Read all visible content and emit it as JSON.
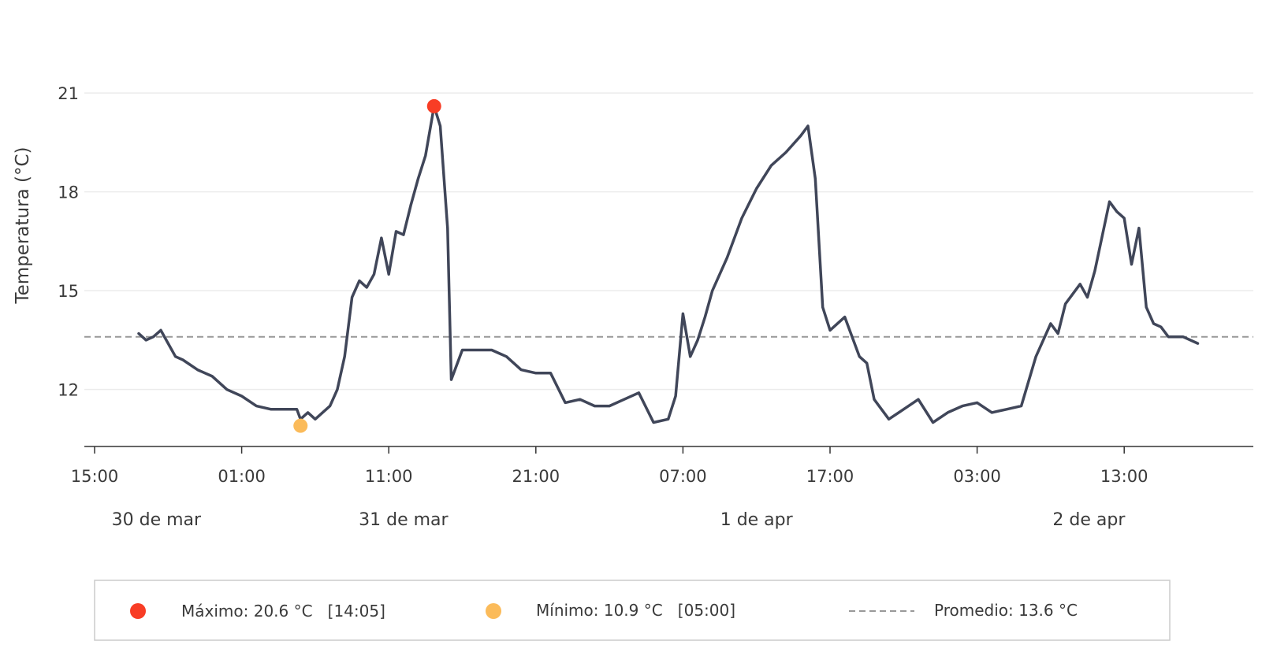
{
  "chart_data": {
    "type": "line",
    "ylabel": "Temperatura (°C)",
    "ylim": [
      10.0,
      22.3
    ],
    "yticks": [
      12,
      15,
      18,
      21
    ],
    "xlim_hours": [
      -0.6,
      78.2
    ],
    "xtick_labels": [
      "15:00",
      "01:00",
      "11:00",
      "21:00",
      "07:00",
      "17:00",
      "03:00",
      "13:00"
    ],
    "date_labels": [
      "30 de mar",
      "31 de mar",
      "1 de apr",
      "2 de apr"
    ],
    "grid": "horizontal",
    "legend_placement": "bottom",
    "colors": {
      "line": "#404659",
      "max": "#f83d25",
      "min": "#fbbb5a",
      "mean": "#999999",
      "grid": "#ececec",
      "axis": "#333333"
    },
    "series": [
      {
        "name": "Temperatura",
        "x": [
          "30 mar 18:00",
          "30 mar 18:30",
          "30 mar 19:00",
          "30 mar 19:30",
          "30 mar 20:00",
          "30 mar 20:30",
          "30 mar 21:00",
          "30 mar 22:00",
          "30 mar 23:00",
          "31 mar 00:00",
          "31 mar 01:00",
          "31 mar 02:00",
          "31 mar 03:00",
          "31 mar 04:00",
          "31 mar 04:45",
          "31 mar 05:00",
          "31 mar 05:30",
          "31 mar 06:00",
          "31 mar 07:00",
          "31 mar 07:30",
          "31 mar 08:00",
          "31 mar 08:30",
          "31 mar 09:00",
          "31 mar 09:30",
          "31 mar 10:00",
          "31 mar 10:30",
          "31 mar 11:00",
          "31 mar 11:30",
          "31 mar 12:00",
          "31 mar 12:30",
          "31 mar 13:00",
          "31 mar 13:30",
          "31 mar 14:05",
          "31 mar 14:30",
          "31 mar 15:00",
          "31 mar 15:15",
          "31 mar 16:00",
          "31 mar 17:00",
          "31 mar 18:00",
          "31 mar 19:00",
          "31 mar 20:00",
          "31 mar 21:00",
          "31 mar 22:00",
          "31 mar 23:00",
          "1 apr 00:00",
          "1 apr 01:00",
          "1 apr 02:00",
          "1 apr 03:00",
          "1 apr 04:00",
          "1 apr 05:00",
          "1 apr 06:00",
          "1 apr 06:30",
          "1 apr 07:00",
          "1 apr 07:30",
          "1 apr 08:00",
          "1 apr 08:30",
          "1 apr 09:00",
          "1 apr 10:00",
          "1 apr 11:00",
          "1 apr 12:00",
          "1 apr 13:00",
          "1 apr 14:00",
          "1 apr 15:00",
          "1 apr 15:30",
          "1 apr 16:00",
          "1 apr 16:30",
          "1 apr 17:00",
          "1 apr 18:00",
          "1 apr 19:00",
          "1 apr 19:30",
          "1 apr 20:00",
          "1 apr 21:00",
          "1 apr 22:00",
          "1 apr 23:00",
          "2 apr 00:00",
          "2 apr 01:00",
          "2 apr 02:00",
          "2 apr 03:00",
          "2 apr 04:00",
          "2 apr 05:00",
          "2 apr 06:00",
          "2 apr 07:00",
          "2 apr 08:00",
          "2 apr 08:30",
          "2 apr 09:00",
          "2 apr 10:00",
          "2 apr 10:30",
          "2 apr 11:00",
          "2 apr 12:00",
          "2 apr 12:30",
          "2 apr 13:00",
          "2 apr 13:30",
          "2 apr 14:00",
          "2 apr 14:30",
          "2 apr 15:00",
          "2 apr 15:30",
          "2 apr 16:00",
          "2 apr 17:00",
          "2 apr 18:00"
        ],
        "y": [
          13.7,
          13.5,
          13.6,
          13.8,
          13.4,
          13.0,
          12.9,
          12.6,
          12.4,
          12.0,
          11.8,
          11.5,
          11.4,
          11.4,
          11.4,
          11.1,
          11.3,
          11.1,
          11.5,
          12.0,
          13.0,
          14.8,
          15.3,
          15.1,
          15.5,
          16.6,
          15.5,
          16.8,
          16.7,
          17.6,
          18.4,
          19.1,
          20.6,
          20.0,
          16.9,
          12.3,
          13.2,
          13.2,
          13.2,
          13.0,
          12.6,
          12.5,
          12.5,
          11.6,
          11.7,
          11.5,
          11.5,
          11.7,
          11.9,
          11.0,
          11.1,
          11.8,
          14.3,
          13.0,
          13.5,
          14.2,
          15.0,
          16.0,
          17.2,
          18.1,
          18.8,
          19.2,
          19.7,
          20.0,
          18.4,
          14.5,
          13.8,
          14.2,
          13.0,
          12.8,
          11.7,
          11.1,
          11.4,
          11.7,
          11.0,
          11.3,
          11.5,
          11.6,
          11.3,
          11.4,
          11.5,
          13.0,
          14.0,
          13.7,
          14.6,
          15.2,
          14.8,
          15.6,
          17.7,
          17.4,
          17.2,
          15.8,
          16.9,
          14.5,
          14.0,
          13.9,
          13.6,
          13.6,
          13.4
        ]
      }
    ],
    "max": {
      "label": "Máximo: 20.6 °C   [14:05]",
      "x": "31 mar 14:05",
      "y": 20.6
    },
    "min": {
      "label": "Mínimo: 10.9 °C   [05:00]",
      "x": "31 mar 05:00",
      "y": 10.9
    },
    "mean": {
      "label": "Promedio: 13.6 °C",
      "y": 13.6
    }
  }
}
